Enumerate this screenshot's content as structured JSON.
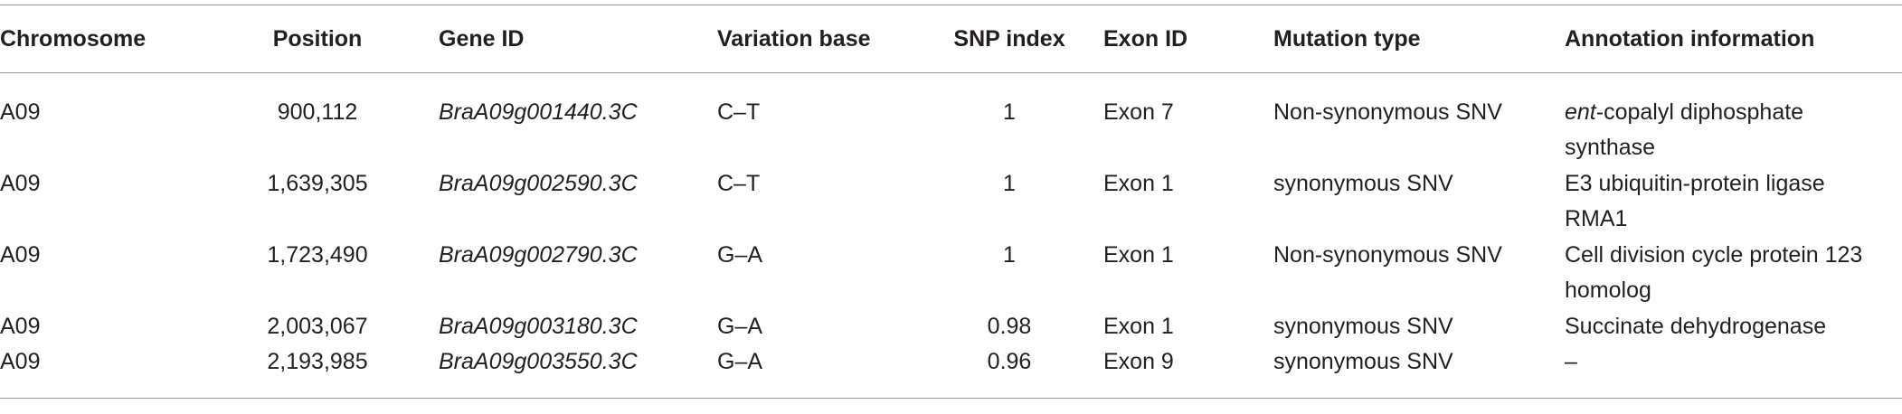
{
  "table": {
    "columns": [
      "Chromosome",
      "Position",
      "Gene ID",
      "Variation base",
      "SNP index",
      "Exon ID",
      "Mutation type",
      "Annotation information"
    ],
    "rows": [
      [
        "A09",
        "900,112",
        "BraA09g001440.3C",
        "C–T",
        1,
        "Exon 7",
        "Non-synonymous SNV",
        [
          {
            "italic": "ent",
            "text": "-copalyl diphosphate"
          },
          "synthase"
        ]
      ],
      [
        "A09",
        "1,639,305",
        "BraA09g002590.3C",
        "C–T",
        1,
        "Exon 1",
        "synonymous SNV",
        [
          "E3 ubiquitin-protein ligase",
          "RMA1"
        ]
      ],
      [
        "A09",
        "1,723,490",
        "BraA09g002790.3C",
        "G–A",
        1,
        "Exon 1",
        "Non-synonymous SNV",
        [
          "Cell division cycle protein 123",
          "homolog"
        ]
      ],
      [
        "A09",
        "2,003,067",
        "BraA09g003180.3C",
        "G–A",
        0.98,
        "Exon 1",
        "synonymous SNV",
        [
          "Succinate dehydrogenase"
        ]
      ],
      [
        "A09",
        "2,193,985",
        "BraA09g003550.3C",
        "G–A",
        0.96,
        "Exon 9",
        "synonymous SNV",
        [
          "–"
        ]
      ]
    ]
  }
}
